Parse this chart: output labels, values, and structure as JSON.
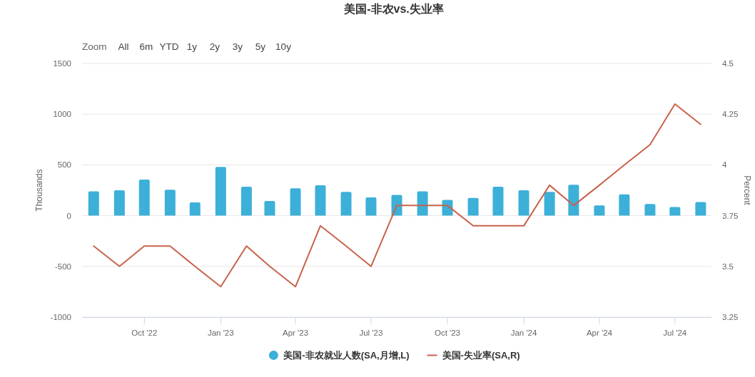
{
  "chart_data": {
    "type": "bar",
    "title": "美国-非农vs.失业率",
    "annotations": [
      "Zoom",
      "All",
      "6m",
      "YTD",
      "1y",
      "2y",
      "3y",
      "5y",
      "10y"
    ],
    "ylabel": "Thousands",
    "y2label": "Percent",
    "x": [
      "2022-08",
      "2022-09",
      "2022-10",
      "2022-11",
      "2022-12",
      "2023-01",
      "2023-02",
      "2023-03",
      "2023-04",
      "2023-05",
      "2023-06",
      "2023-07",
      "2023-08",
      "2023-09",
      "2023-10",
      "2023-11",
      "2023-12",
      "2024-01",
      "2024-02",
      "2024-03",
      "2024-04",
      "2024-05",
      "2024-06",
      "2024-07",
      "2024-08"
    ],
    "series": [
      {
        "name": "美国-非农就业人数(SA,月增,L)",
        "color": "#3cb0d8",
        "values": [
          240,
          250,
          355,
          255,
          130,
          480,
          285,
          145,
          270,
          300,
          235,
          180,
          205,
          240,
          155,
          175,
          285,
          250,
          235,
          305,
          100,
          210,
          115,
          85,
          135
        ]
      },
      {
        "name": "美国-失业率(SA,R)",
        "type": "line",
        "axis": "y2",
        "color": "#c8624b",
        "values": [
          3.6,
          3.5,
          3.6,
          3.6,
          3.5,
          3.4,
          3.6,
          3.5,
          3.4,
          3.7,
          3.6,
          3.5,
          3.8,
          3.8,
          3.8,
          3.7,
          3.7,
          3.7,
          3.9,
          3.8,
          3.9,
          4.0,
          4.1,
          4.3,
          4.2
        ]
      }
    ],
    "xlim": [
      "2022-07-18",
      "2024-08-14"
    ],
    "xticks": [
      {
        "value": "2022-10",
        "label": "Oct '22"
      },
      {
        "value": "2023-01",
        "label": "Jan '23"
      },
      {
        "value": "2023-04",
        "label": "Apr '23"
      },
      {
        "value": "2023-07",
        "label": "Jul '23"
      },
      {
        "value": "2023-10",
        "label": "Oct '23"
      },
      {
        "value": "2024-01",
        "label": "Jan '24"
      },
      {
        "value": "2024-04",
        "label": "Apr '24"
      },
      {
        "value": "2024-07",
        "label": "Jul '24"
      }
    ],
    "ylim": [
      -1000,
      1500
    ],
    "yticks": [
      -1000,
      -500,
      0,
      500,
      1000,
      1500
    ],
    "y2lim": [
      3.25,
      4.5
    ],
    "y2ticks": [
      3.25,
      3.5,
      3.75,
      4,
      4.25,
      4.5
    ],
    "grid": "y",
    "legend": "bottom"
  }
}
